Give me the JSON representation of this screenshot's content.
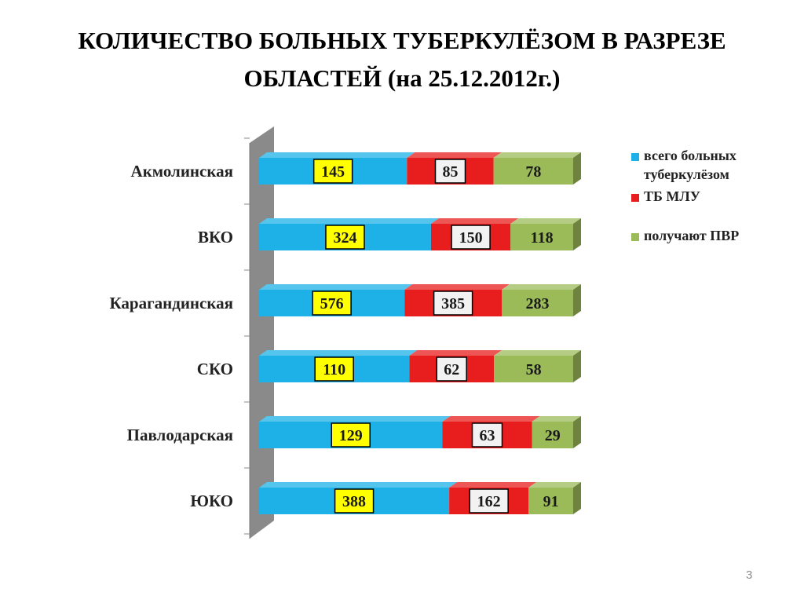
{
  "slide": {
    "title_line1": "КОЛИЧЕСТВО БОЛЬНЫХ  ТУБЕРКУЛЁЗОМ В РАЗРЕЗЕ",
    "title_line2": "ОБЛАСТЕЙ (на 25.12.2012г.)",
    "page_number": "3"
  },
  "chart_data": {
    "type": "bar",
    "orientation": "horizontal",
    "stacking": "percent",
    "style": "3d",
    "categories": [
      "Акмолинская",
      "ВКО",
      "Карагандинская",
      "СКО",
      "Павлодарская",
      "ЮКО"
    ],
    "series": [
      {
        "name": "всего больных туберкулёзом",
        "color": "#1EB1E8",
        "label_background": "#FFFF00",
        "values": [
          145,
          324,
          576,
          110,
          129,
          388
        ]
      },
      {
        "name": "ТБ МЛУ",
        "color": "#E81E1E",
        "label_background": "#F2F2F2",
        "values": [
          85,
          150,
          385,
          62,
          63,
          162
        ]
      },
      {
        "name": "получают ПВР",
        "color": "#9BBB59",
        "label_background": "none",
        "values": [
          78,
          118,
          283,
          58,
          29,
          91
        ]
      }
    ],
    "legend_position": "right",
    "grid": false
  }
}
